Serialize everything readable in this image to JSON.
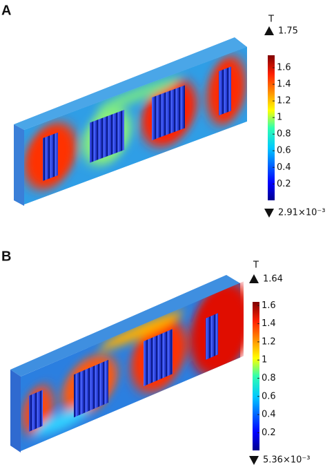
{
  "panels": [
    {
      "label": "A",
      "unit": "T",
      "max": 1.75,
      "min": {
        "value": 0.00291,
        "label": "2.91×10⁻³"
      },
      "colorbar_ticks": [
        0.2,
        0.4,
        0.6,
        0.8,
        1,
        1.2,
        1.4,
        1.6
      ]
    },
    {
      "label": "B",
      "unit": "T",
      "max": 1.64,
      "min": {
        "value": 0.00536,
        "label": "5.36×10⁻³"
      },
      "colorbar_ticks": [
        0.2,
        0.4,
        0.6,
        0.8,
        1,
        1.2,
        1.4,
        1.6
      ]
    }
  ]
}
